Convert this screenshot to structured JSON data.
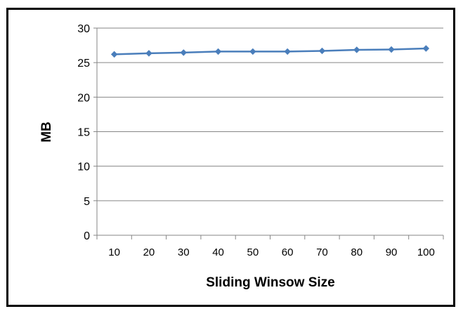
{
  "chart_data": {
    "type": "line",
    "title": "",
    "xlabel": "Sliding Winsow Size",
    "ylabel": "MB",
    "categories": [
      "10",
      "20",
      "30",
      "40",
      "50",
      "60",
      "70",
      "80",
      "90",
      "100"
    ],
    "series": [
      {
        "values": [
          26.2,
          26.35,
          26.45,
          26.6,
          26.6,
          26.6,
          26.7,
          26.85,
          26.9,
          27.05
        ]
      }
    ],
    "ylim": [
      0,
      30
    ],
    "yticks": [
      "0",
      "5",
      "10",
      "15",
      "20",
      "25",
      "30"
    ],
    "grid": true,
    "legend": "none",
    "colors": {
      "series": "#4a7ebb",
      "grid": "#868686",
      "axis": "#868686"
    }
  }
}
